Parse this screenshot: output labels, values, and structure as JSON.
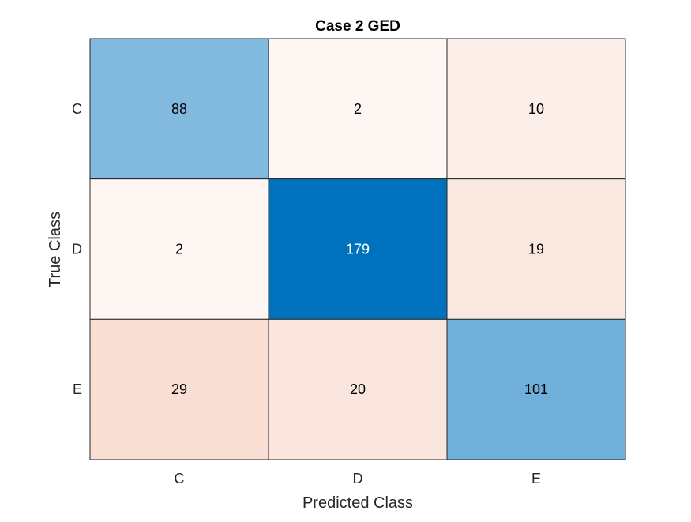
{
  "chart_data": {
    "type": "heatmap",
    "title": "Case 2 GED",
    "xlabel": "Predicted Class",
    "ylabel": "True Class",
    "x_categories": [
      "C",
      "D",
      "E"
    ],
    "y_categories": [
      "C",
      "D",
      "E"
    ],
    "values": [
      [
        88,
        2,
        10
      ],
      [
        2,
        179,
        19
      ],
      [
        29,
        20,
        101
      ]
    ],
    "diagonal_color": "#0072BD",
    "offdiagonal_color": "#D95319",
    "cell_border_color": "#262626"
  }
}
